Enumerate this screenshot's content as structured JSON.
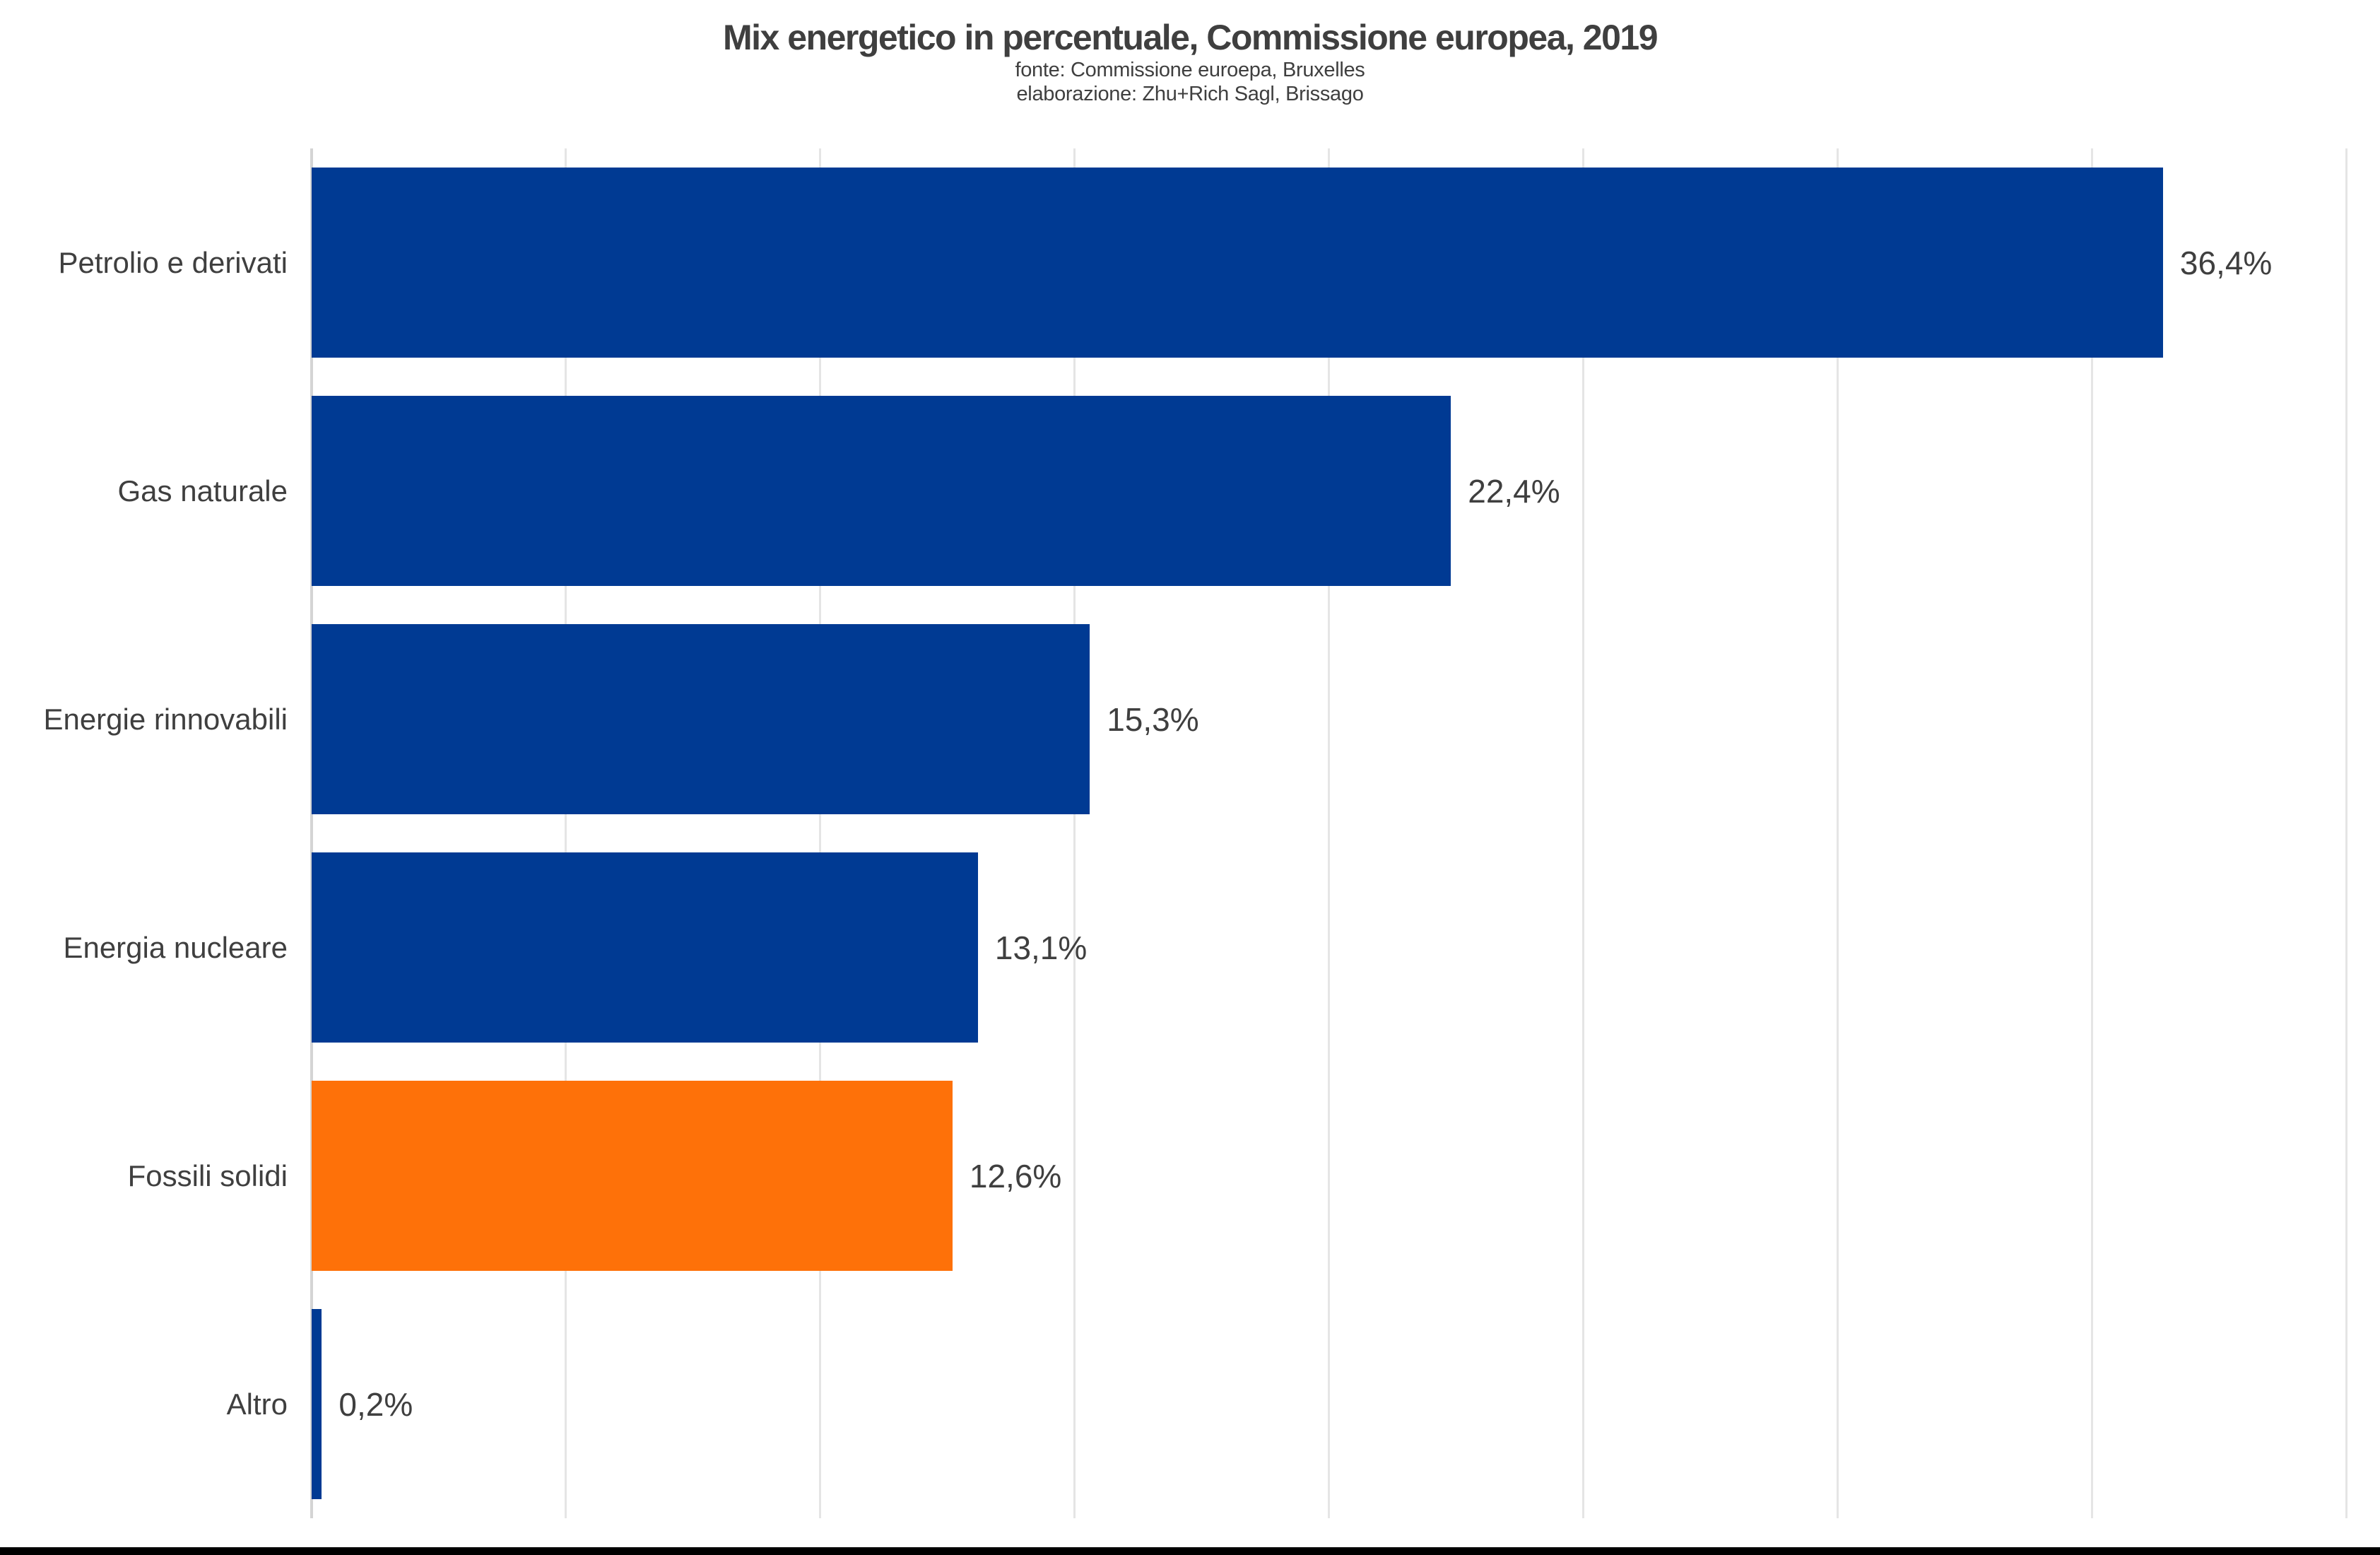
{
  "header": {
    "title": "Mix energetico in percentuale, Commissione europea, 2019",
    "subtitle_fonte": "fonte: Commissione euroepa, Bruxelles",
    "subtitle_elaborazione": "elaborazione: Zhu+Rich Sagl, Brissago"
  },
  "chart_data": {
    "type": "bar",
    "orientation": "horizontal",
    "title": "Mix energetico in percentuale, Commissione europea, 2019",
    "categories": [
      "Petrolio e derivati",
      "Gas naturale",
      "Energie rinnovabili",
      "Energia nucleare",
      "Fossili solidi",
      "Altro"
    ],
    "values": [
      36.4,
      22.4,
      15.3,
      13.1,
      12.6,
      0.2
    ],
    "value_labels": [
      "36,4%",
      "22,4%",
      "15,3%",
      "13,1%",
      "12,6%",
      "0,2%"
    ],
    "highlight_index": 4,
    "xlim": [
      0,
      40
    ],
    "gridline_step_percent": 5,
    "grid": "vertical",
    "legend": "none",
    "xlabel": "",
    "ylabel": "",
    "x_tick_labels_visible": false
  },
  "colors": {
    "bar_default": "#003a93",
    "bar_highlight": "#fe7109",
    "text": "#3f3f3f",
    "gridline": "#e5e5e5",
    "axis_line": "#d4d4d4",
    "background": "#ffffff",
    "bottom_strip": "#000000"
  }
}
